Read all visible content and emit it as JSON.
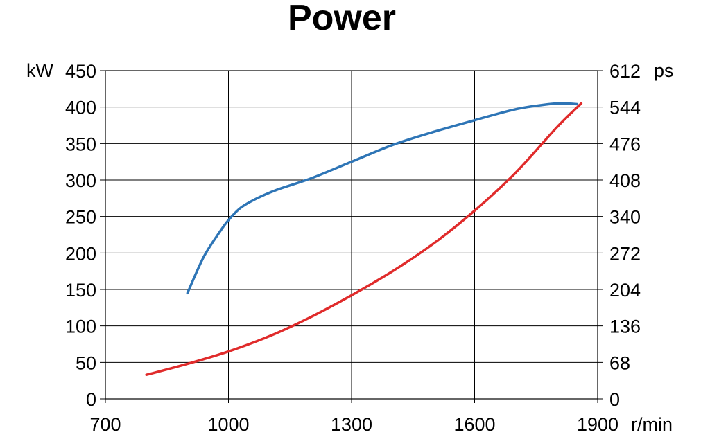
{
  "chart_data": {
    "type": "line",
    "title": "Power",
    "x_unit": "r/min",
    "y_left_unit": "kW",
    "y_right_unit": "ps",
    "xlim": [
      700,
      1900
    ],
    "ylim": [
      0,
      450
    ],
    "x_ticks": [
      700,
      1000,
      1300,
      1600,
      1900
    ],
    "y_left_ticks": [
      0,
      50,
      100,
      150,
      200,
      250,
      300,
      350,
      400,
      450
    ],
    "y_right_ticks": [
      0,
      68,
      136,
      204,
      272,
      340,
      408,
      476,
      544,
      612
    ],
    "grid": true,
    "series": [
      {
        "color": "#2e75b6",
        "x": [
          900,
          940,
          980,
          1000,
          1030,
          1070,
          1120,
          1200,
          1300,
          1400,
          1500,
          1600,
          1700,
          1780,
          1820,
          1850
        ],
        "y": [
          145,
          195,
          230,
          245,
          262,
          275,
          287,
          302,
          325,
          348,
          366,
          382,
          397,
          404,
          405,
          404
        ]
      },
      {
        "color": "#e02b2b",
        "x": [
          800,
          900,
          1000,
          1100,
          1200,
          1300,
          1400,
          1500,
          1600,
          1700,
          1800,
          1860
        ],
        "y": [
          33,
          48,
          65,
          86,
          112,
          142,
          175,
          213,
          258,
          310,
          372,
          405
        ]
      }
    ]
  }
}
